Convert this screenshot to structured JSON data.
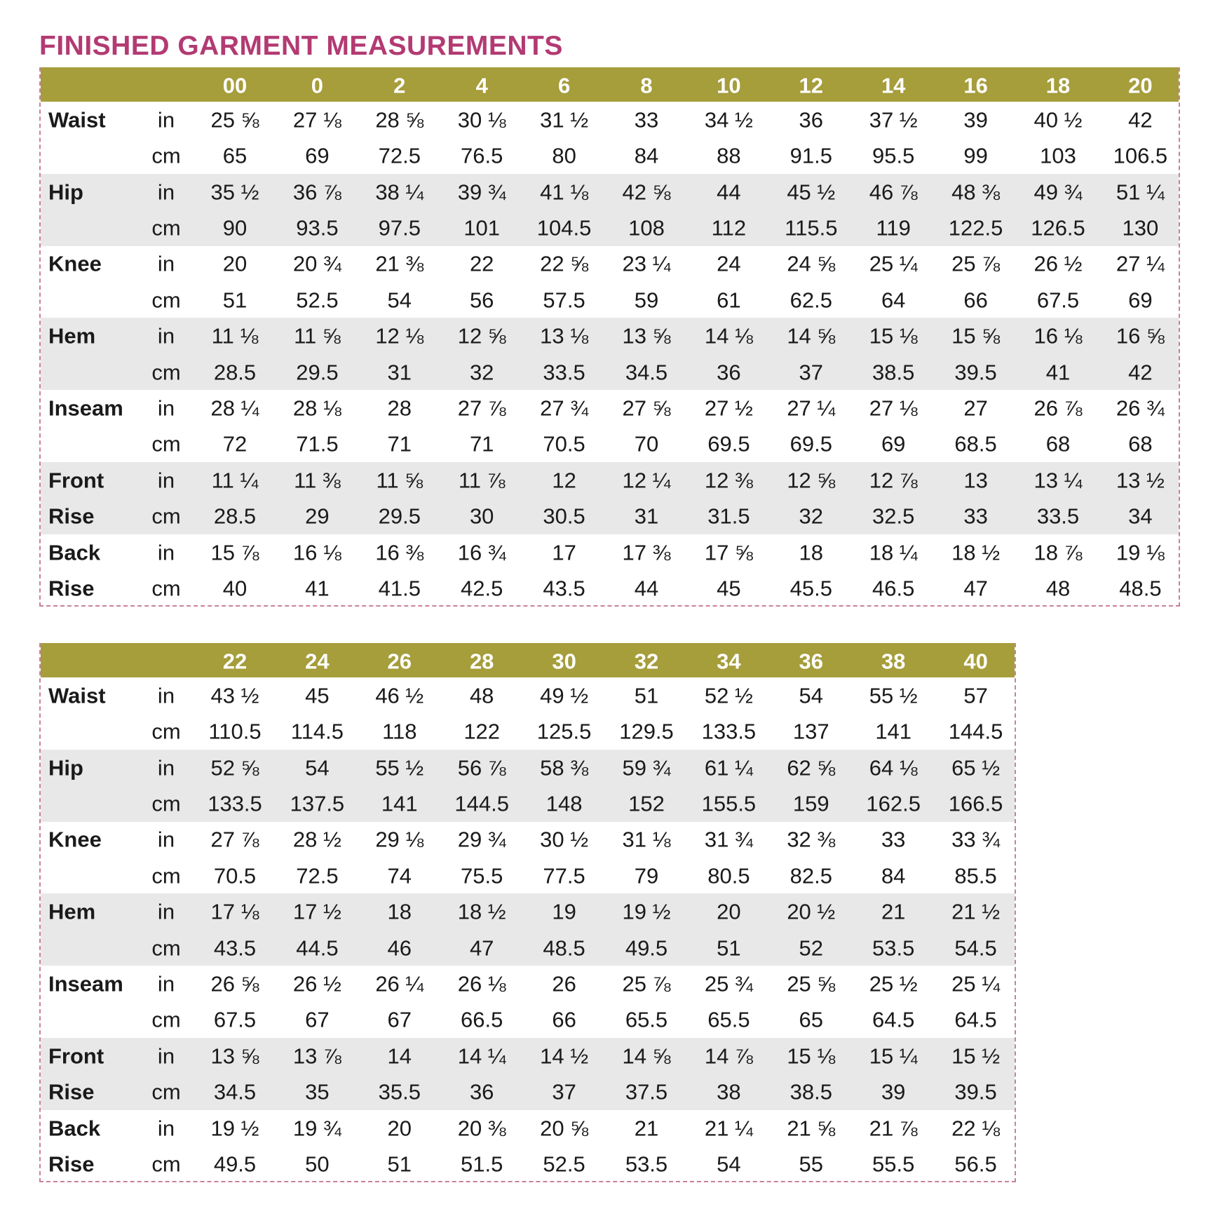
{
  "title": "FINISHED GARMENT MEASUREMENTS",
  "tables": [
    {
      "sizes": [
        "00",
        "0",
        "2",
        "4",
        "6",
        "8",
        "10",
        "12",
        "14",
        "16",
        "18",
        "20"
      ],
      "measurements": [
        {
          "label": [
            "Waist"
          ],
          "lines": [
            {
              "unit": "in",
              "values": [
                "25 ⅝",
                "27 ⅛",
                "28 ⅝",
                "30 ⅛",
                "31 ½",
                "33",
                "34 ½",
                "36",
                "37 ½",
                "39",
                "40 ½",
                "42"
              ]
            },
            {
              "unit": "cm",
              "values": [
                "65",
                "69",
                "72.5",
                "76.5",
                "80",
                "84",
                "88",
                "91.5",
                "95.5",
                "99",
                "103",
                "106.5"
              ]
            }
          ]
        },
        {
          "label": [
            "Hip"
          ],
          "lines": [
            {
              "unit": "in",
              "values": [
                "35 ½",
                "36 ⅞",
                "38 ¼",
                "39 ¾",
                "41 ⅛",
                "42 ⅝",
                "44",
                "45 ½",
                "46 ⅞",
                "48 ⅜",
                "49 ¾",
                "51 ¼"
              ]
            },
            {
              "unit": "cm",
              "values": [
                "90",
                "93.5",
                "97.5",
                "101",
                "104.5",
                "108",
                "112",
                "115.5",
                "119",
                "122.5",
                "126.5",
                "130"
              ]
            }
          ]
        },
        {
          "label": [
            "Knee"
          ],
          "lines": [
            {
              "unit": "in",
              "values": [
                "20",
                "20 ¾",
                "21 ⅜",
                "22",
                "22 ⅝",
                "23 ¼",
                "24",
                "24 ⅝",
                "25 ¼",
                "25 ⅞",
                "26 ½",
                "27 ¼"
              ]
            },
            {
              "unit": "cm",
              "values": [
                "51",
                "52.5",
                "54",
                "56",
                "57.5",
                "59",
                "61",
                "62.5",
                "64",
                "66",
                "67.5",
                "69"
              ]
            }
          ]
        },
        {
          "label": [
            "Hem"
          ],
          "lines": [
            {
              "unit": "in",
              "values": [
                "11 ⅛",
                "11 ⅝",
                "12 ⅛",
                "12 ⅝",
                "13 ⅛",
                "13 ⅝",
                "14 ⅛",
                "14 ⅝",
                "15 ⅛",
                "15 ⅝",
                "16 ⅛",
                "16 ⅝"
              ]
            },
            {
              "unit": "cm",
              "values": [
                "28.5",
                "29.5",
                "31",
                "32",
                "33.5",
                "34.5",
                "36",
                "37",
                "38.5",
                "39.5",
                "41",
                "42"
              ]
            }
          ]
        },
        {
          "label": [
            "Inseam"
          ],
          "lines": [
            {
              "unit": "in",
              "values": [
                "28 ¼",
                "28 ⅛",
                "28",
                "27 ⅞",
                "27 ¾",
                "27 ⅝",
                "27 ½",
                "27 ¼",
                "27 ⅛",
                "27",
                "26 ⅞",
                "26 ¾"
              ]
            },
            {
              "unit": "cm",
              "values": [
                "72",
                "71.5",
                "71",
                "71",
                "70.5",
                "70",
                "69.5",
                "69.5",
                "69",
                "68.5",
                "68",
                "68"
              ]
            }
          ]
        },
        {
          "label": [
            "Front",
            "Rise"
          ],
          "lines": [
            {
              "unit": "in",
              "values": [
                "11 ¼",
                "11 ⅜",
                "11 ⅝",
                "11 ⅞",
                "12",
                "12 ¼",
                "12 ⅜",
                "12 ⅝",
                "12 ⅞",
                "13",
                "13 ¼",
                "13 ½"
              ]
            },
            {
              "unit": "cm",
              "values": [
                "28.5",
                "29",
                "29.5",
                "30",
                "30.5",
                "31",
                "31.5",
                "32",
                "32.5",
                "33",
                "33.5",
                "34"
              ]
            }
          ]
        },
        {
          "label": [
            "Back",
            "Rise"
          ],
          "lines": [
            {
              "unit": "in",
              "values": [
                "15 ⅞",
                "16 ⅛",
                "16 ⅜",
                "16 ¾",
                "17",
                "17 ⅜",
                "17 ⅝",
                "18",
                "18 ¼",
                "18 ½",
                "18 ⅞",
                "19 ⅛"
              ]
            },
            {
              "unit": "cm",
              "values": [
                "40",
                "41",
                "41.5",
                "42.5",
                "43.5",
                "44",
                "45",
                "45.5",
                "46.5",
                "47",
                "48",
                "48.5"
              ]
            }
          ]
        }
      ]
    },
    {
      "sizes": [
        "22",
        "24",
        "26",
        "28",
        "30",
        "32",
        "34",
        "36",
        "38",
        "40"
      ],
      "measurements": [
        {
          "label": [
            "Waist"
          ],
          "lines": [
            {
              "unit": "in",
              "values": [
                "43 ½",
                "45",
                "46 ½",
                "48",
                "49 ½",
                "51",
                "52 ½",
                "54",
                "55 ½",
                "57"
              ]
            },
            {
              "unit": "cm",
              "values": [
                "110.5",
                "114.5",
                "118",
                "122",
                "125.5",
                "129.5",
                "133.5",
                "137",
                "141",
                "144.5"
              ]
            }
          ]
        },
        {
          "label": [
            "Hip"
          ],
          "lines": [
            {
              "unit": "in",
              "values": [
                "52 ⅝",
                "54",
                "55 ½",
                "56 ⅞",
                "58 ⅜",
                "59 ¾",
                "61 ¼",
                "62 ⅝",
                "64 ⅛",
                "65 ½"
              ]
            },
            {
              "unit": "cm",
              "values": [
                "133.5",
                "137.5",
                "141",
                "144.5",
                "148",
                "152",
                "155.5",
                "159",
                "162.5",
                "166.5"
              ]
            }
          ]
        },
        {
          "label": [
            "Knee"
          ],
          "lines": [
            {
              "unit": "in",
              "values": [
                "27 ⅞",
                "28 ½",
                "29 ⅛",
                "29 ¾",
                "30 ½",
                "31 ⅛",
                "31 ¾",
                "32 ⅜",
                "33",
                "33 ¾"
              ]
            },
            {
              "unit": "cm",
              "values": [
                "70.5",
                "72.5",
                "74",
                "75.5",
                "77.5",
                "79",
                "80.5",
                "82.5",
                "84",
                "85.5"
              ]
            }
          ]
        },
        {
          "label": [
            "Hem"
          ],
          "lines": [
            {
              "unit": "in",
              "values": [
                "17 ⅛",
                "17 ½",
                "18",
                "18 ½",
                "19",
                "19 ½",
                "20",
                "20 ½",
                "21",
                "21 ½"
              ]
            },
            {
              "unit": "cm",
              "values": [
                "43.5",
                "44.5",
                "46",
                "47",
                "48.5",
                "49.5",
                "51",
                "52",
                "53.5",
                "54.5"
              ]
            }
          ]
        },
        {
          "label": [
            "Inseam"
          ],
          "lines": [
            {
              "unit": "in",
              "values": [
                "26 ⅝",
                "26 ½",
                "26 ¼",
                "26 ⅛",
                "26",
                "25 ⅞",
                "25 ¾",
                "25 ⅝",
                "25 ½",
                "25 ¼"
              ]
            },
            {
              "unit": "cm",
              "values": [
                "67.5",
                "67",
                "67",
                "66.5",
                "66",
                "65.5",
                "65.5",
                "65",
                "64.5",
                "64.5"
              ]
            }
          ]
        },
        {
          "label": [
            "Front",
            "Rise"
          ],
          "lines": [
            {
              "unit": "in",
              "values": [
                "13 ⅝",
                "13 ⅞",
                "14",
                "14 ¼",
                "14 ½",
                "14 ⅝",
                "14 ⅞",
                "15 ⅛",
                "15 ¼",
                "15 ½"
              ]
            },
            {
              "unit": "cm",
              "values": [
                "34.5",
                "35",
                "35.5",
                "36",
                "37",
                "37.5",
                "38",
                "38.5",
                "39",
                "39.5"
              ]
            }
          ]
        },
        {
          "label": [
            "Back",
            "Rise"
          ],
          "lines": [
            {
              "unit": "in",
              "values": [
                "19 ½",
                "19 ¾",
                "20",
                "20 ⅜",
                "20 ⅝",
                "21",
                "21 ¼",
                "21 ⅝",
                "21 ⅞",
                "22 ⅛"
              ]
            },
            {
              "unit": "cm",
              "values": [
                "49.5",
                "50",
                "51",
                "51.5",
                "52.5",
                "53.5",
                "54",
                "55",
                "55.5",
                "56.5"
              ]
            }
          ]
        }
      ]
    }
  ]
}
